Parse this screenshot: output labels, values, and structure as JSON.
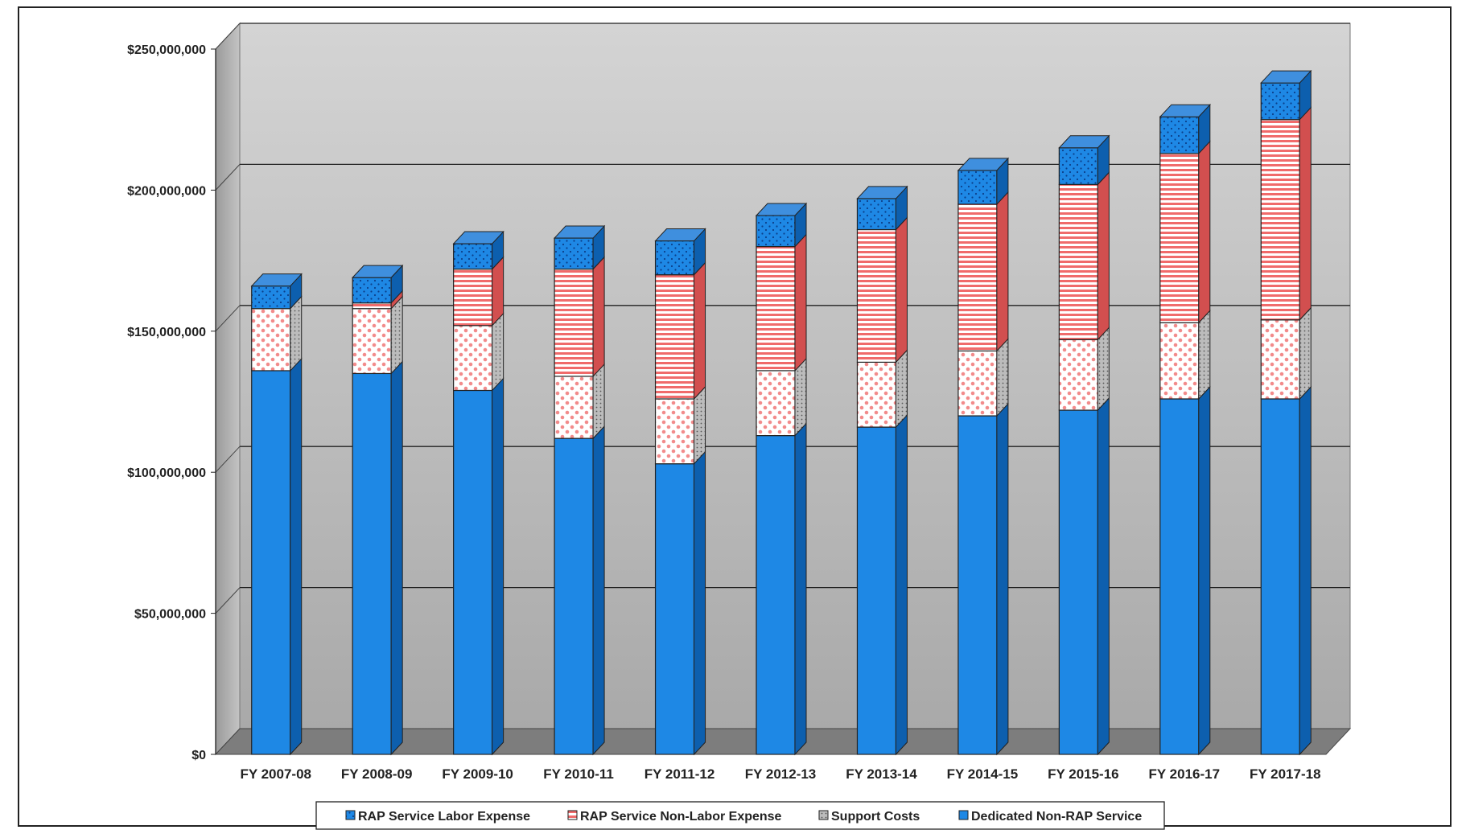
{
  "chart_data": {
    "type": "bar",
    "stacked": true,
    "categories": [
      "FY 2007-08",
      "FY 2008-09",
      "FY 2009-10",
      "FY 2010-11",
      "FY 2011-12",
      "FY 2012-13",
      "FY 2013-14",
      "FY 2014-15",
      "FY 2015-16",
      "FY 2016-17",
      "FY 2017-18"
    ],
    "series": [
      {
        "name": "Dedicated Non-RAP Service",
        "color": "#1e88e5",
        "values": [
          136000000,
          135000000,
          129000000,
          112000000,
          103000000,
          113000000,
          116000000,
          120000000,
          122000000,
          126000000,
          126000000
        ]
      },
      {
        "name": "Support Costs",
        "color": "#f28b8b",
        "values": [
          22000000,
          23000000,
          23000000,
          22000000,
          23000000,
          23000000,
          23000000,
          23000000,
          25000000,
          27000000,
          28000000
        ]
      },
      {
        "name": "RAP Service Non-Labor Expense",
        "color": "#f06b6b",
        "values": [
          0,
          2000000,
          20000000,
          38000000,
          44000000,
          44000000,
          47000000,
          52000000,
          55000000,
          60000000,
          71000000
        ]
      },
      {
        "name": "RAP Service Labor Expense",
        "color": "#1e88e5",
        "values": [
          8000000,
          9000000,
          9000000,
          11000000,
          12000000,
          11000000,
          11000000,
          12000000,
          13000000,
          13000000,
          13000000
        ]
      }
    ],
    "legend_order": [
      "RAP Service Labor Expense",
      "RAP Service Non-Labor Expense",
      "Support Costs",
      "Dedicated Non-RAP Service"
    ],
    "y_ticks": [
      "$0",
      "$50,000,000",
      "$100,000,000",
      "$150,000,000",
      "$200,000,000",
      "$250,000,000"
    ],
    "ylim": [
      0,
      250000000
    ],
    "grid": true,
    "legend_position": "bottom",
    "title": "",
    "xlabel": "",
    "ylabel": ""
  }
}
